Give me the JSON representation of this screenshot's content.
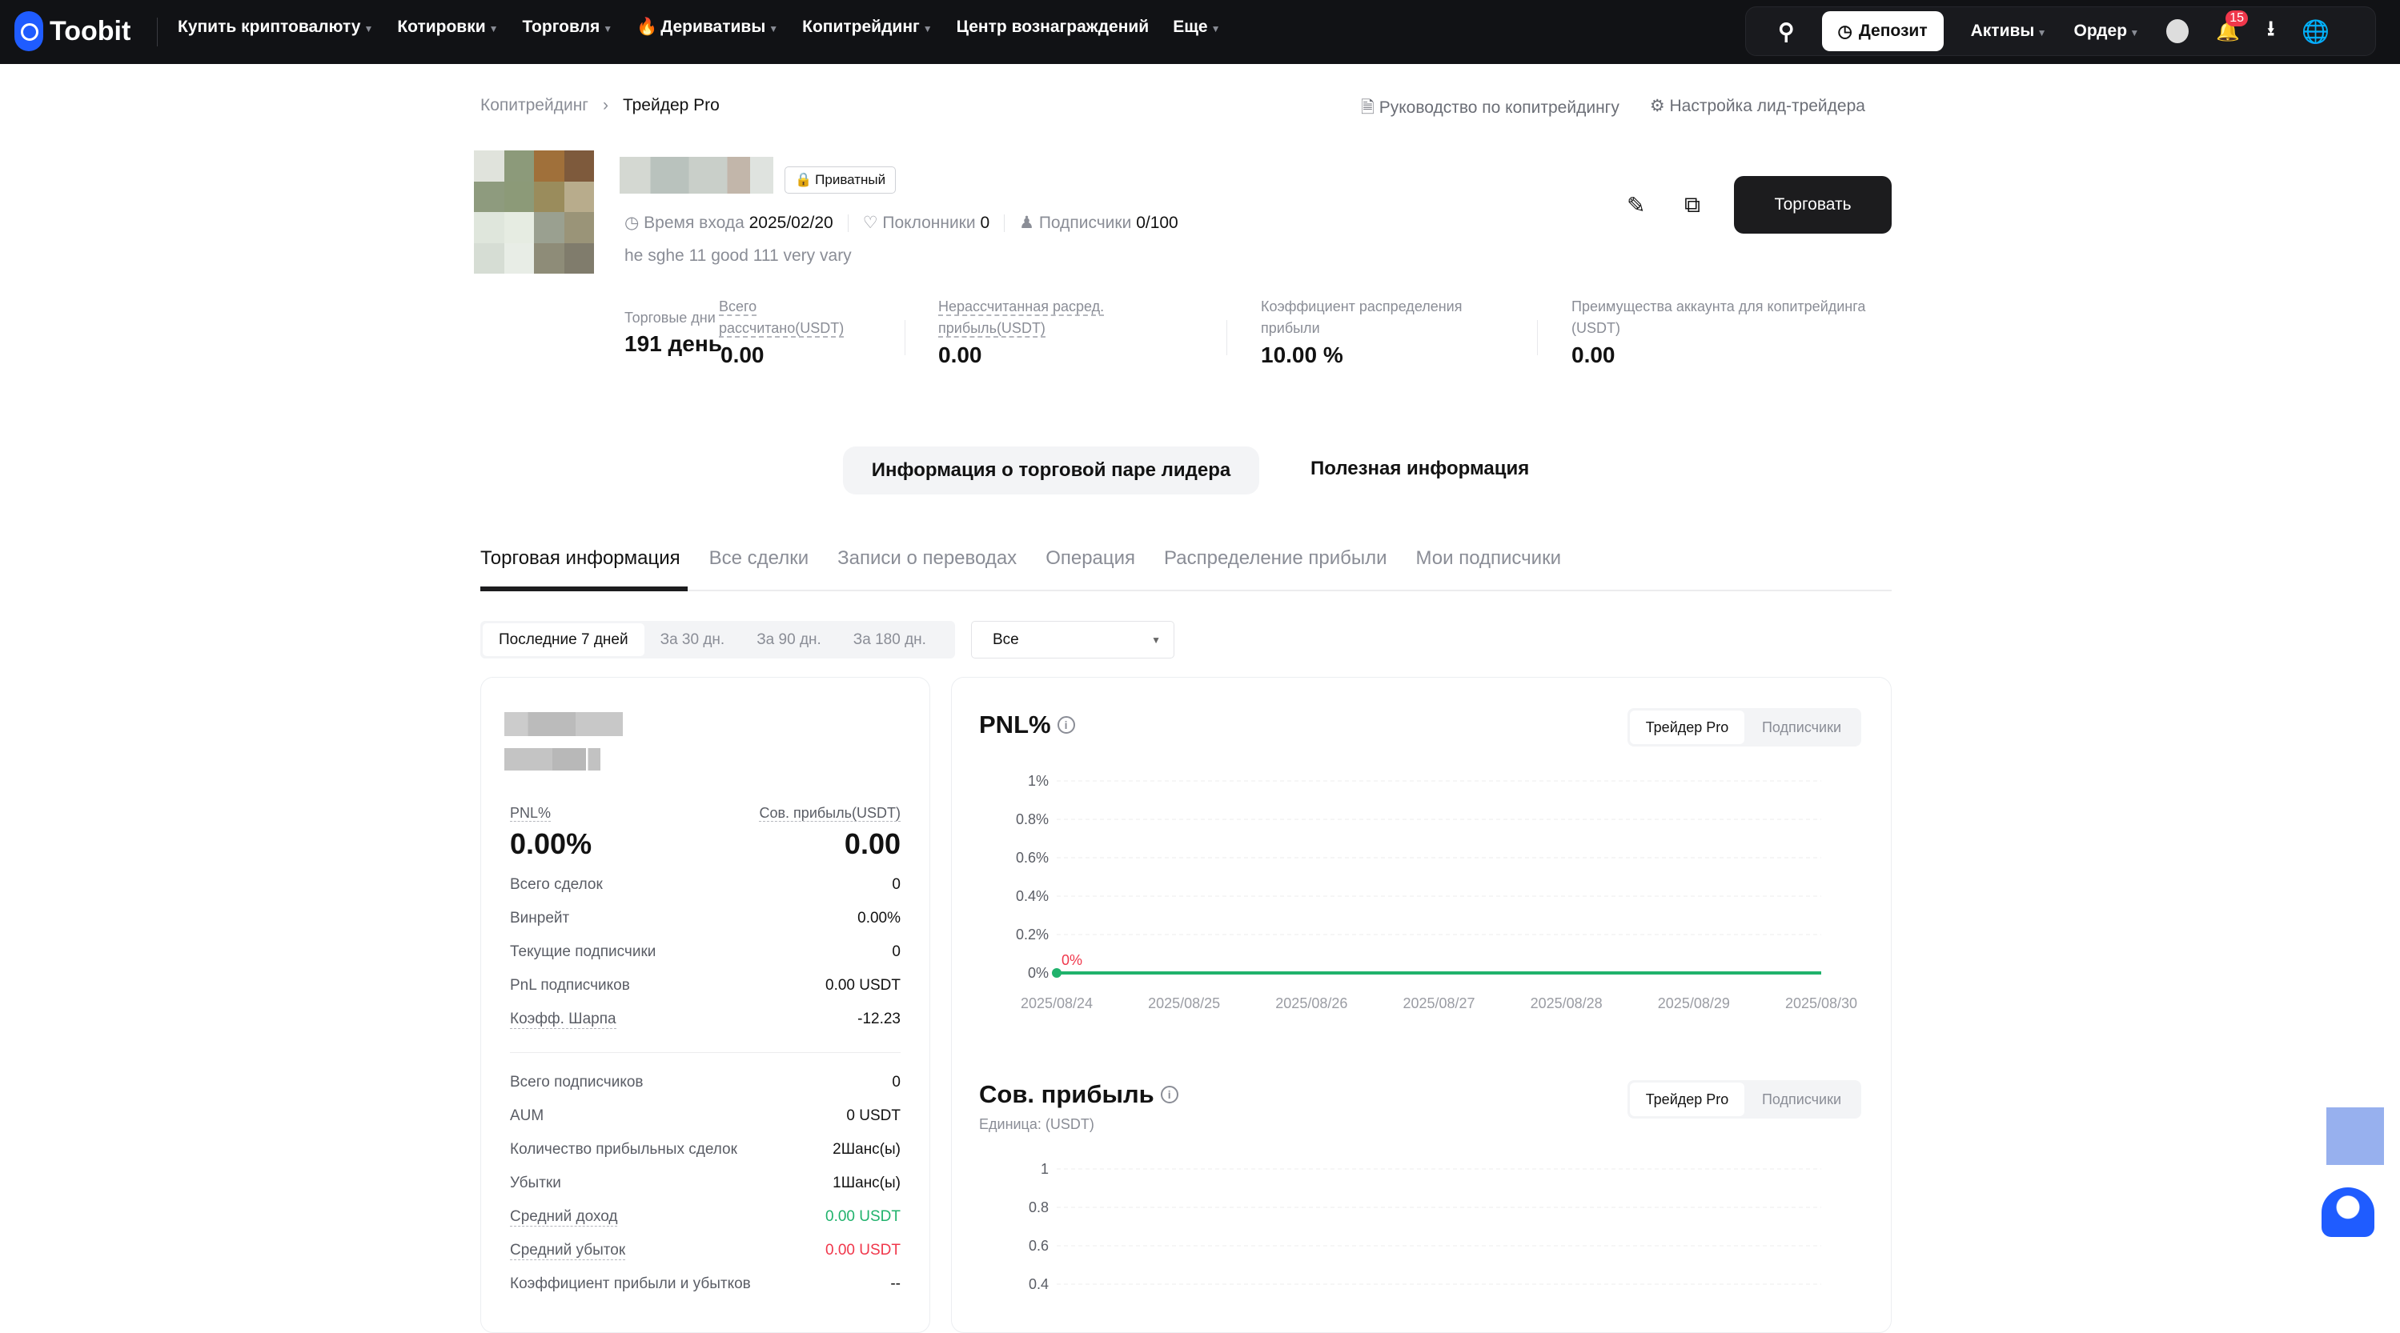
{
  "nav": {
    "brand": "Toobit",
    "menu": [
      {
        "label": "Купить криптовалюту",
        "caret": true
      },
      {
        "label": "Котировки",
        "caret": true
      },
      {
        "label": "Торговля",
        "caret": true
      },
      {
        "label": "Деривативы",
        "caret": true,
        "icon": "fire-icon"
      },
      {
        "label": "Копитрейдинг",
        "caret": true
      },
      {
        "label": "Центр вознаграждений",
        "caret": false
      },
      {
        "label": "Еще",
        "caret": true
      }
    ],
    "deposit": "Депозит",
    "assets": "Активы",
    "orders": "Ордер",
    "notifications": "15"
  },
  "breadcrumb": {
    "parent": "Копитрейдинг",
    "current": "Трейдер Pro"
  },
  "links": {
    "guide": "Руководство по копитрейдингу",
    "settings": "Настройка лид-трейдера"
  },
  "profile": {
    "private_badge": "Приватный",
    "entry_label": "Время входа",
    "entry_value": "2025/02/20",
    "fans_label": "Поклонники",
    "fans_value": "0",
    "subs_label": "Подписчики",
    "subs_value": "0/100",
    "bio": "he sghe 11 good 111 very vary",
    "trade_button": "Торговать"
  },
  "stats": {
    "days_label": "Торговые дни",
    "days_value": "191 день",
    "settled_label": "Всего рассчитано(USDT)",
    "settled_value": "0.00",
    "unsettled_label": "Нерассчитанная расред. прибыль(USDT)",
    "unsettled_value": "0.00",
    "ratio_label": "Коэффициент распределения прибыли",
    "ratio_value": "10.00 %",
    "benefit_label": "Преимущества аккаунта для копитрейдинга (USDT)",
    "benefit_value": "0.00"
  },
  "main_tabs": {
    "active": "Информация о торговой паре лидера",
    "other": "Полезная информация"
  },
  "sub_tabs": [
    "Торговая информация",
    "Все сделки",
    "Записи о переводах",
    "Операция",
    "Распределение прибыли",
    "Мои подписчики"
  ],
  "periods": [
    "Последние 7 дней",
    "За 30 дн.",
    "За 90 дн.",
    "За 180 дн."
  ],
  "filter": {
    "value": "Все"
  },
  "summary": {
    "pnl_label": "PNL%",
    "pnl_value": "0.00%",
    "profit_label": "Сов. прибыль(USDT)",
    "profit_value": "0.00",
    "rows1": [
      {
        "label": "Всего сделок",
        "value": "0"
      },
      {
        "label": "Винрейт",
        "value": "0.00%"
      },
      {
        "label": "Текущие подписчики",
        "value": "0"
      },
      {
        "label": "PnL подписчиков",
        "value": "0.00 USDT"
      },
      {
        "label": "Коэфф. Шарпа",
        "value": "-12.23",
        "dashed": true
      }
    ],
    "rows2": [
      {
        "label": "Всего подписчиков",
        "value": "0"
      },
      {
        "label": "AUM",
        "value": "0 USDT"
      },
      {
        "label": "Количество прибыльных сделок",
        "value": "2Шанс(ы)"
      },
      {
        "label": "Убытки",
        "value": "1Шанс(ы)"
      },
      {
        "label": "Средний доход",
        "value": "0.00 USDT",
        "dashed": true,
        "color": "#20b26c"
      },
      {
        "label": "Средний убыток",
        "value": "0.00 USDT",
        "dashed": true,
        "color": "#f0374b"
      },
      {
        "label": "Коэффициент прибыли и убытков",
        "value": "--"
      }
    ]
  },
  "toggle": {
    "leader": "Трейдер Pro",
    "followers": "Подписчики"
  },
  "colors": {
    "green": "#20b26c",
    "red": "#f0374b",
    "nav_bg": "#111215",
    "brand": "#1f5cff"
  },
  "chart_data": [
    {
      "type": "line",
      "title": "PNL%",
      "x": [
        "2025/08/24",
        "2025/08/25",
        "2025/08/26",
        "2025/08/27",
        "2025/08/28",
        "2025/08/29",
        "2025/08/30"
      ],
      "values": [
        0,
        0,
        0,
        0,
        0,
        0,
        0
      ],
      "data_label": "0%",
      "yticks": [
        "0%",
        "0.2%",
        "0.4%",
        "0.6%",
        "0.8%",
        "1%"
      ],
      "ylim": [
        0,
        1
      ],
      "grid": true,
      "line_color": "#20b26c"
    },
    {
      "type": "line",
      "title": "Сов. прибыль",
      "subtitle": "Единица:  (USDT)",
      "yticks_visible": [
        "0.4",
        "0.6",
        "0.8",
        "1"
      ],
      "ylim_top": 1,
      "grid": true
    }
  ]
}
